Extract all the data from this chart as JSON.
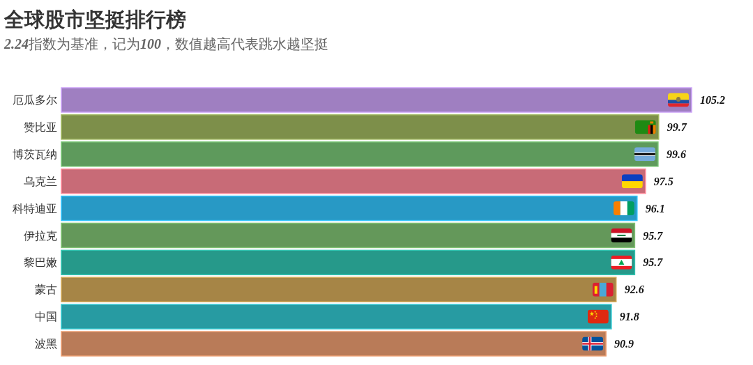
{
  "chart_data": {
    "type": "bar",
    "orientation": "horizontal",
    "title": "全球股市坚挺排行榜",
    "subtitle": "2.24指数为基准，记为100，数值越高代表跳水越坚挺",
    "categories": [
      "厄瓜多尔",
      "赞比亚",
      "博茨瓦纳",
      "乌克兰",
      "科特迪亚",
      "伊拉克",
      "黎巴嫩",
      "蒙古",
      "中国",
      "波黑"
    ],
    "values": [
      105.2,
      99.7,
      99.6,
      97.5,
      96.1,
      95.7,
      95.7,
      92.6,
      91.8,
      90.9
    ],
    "colors": [
      "#9f7fc1",
      "#7d8f4a",
      "#5e9a5c",
      "#c86b77",
      "#2899c5",
      "#64985a",
      "#26998a",
      "#a68546",
      "#279ba2",
      "#b97b58"
    ],
    "data_labels": true
  }
}
